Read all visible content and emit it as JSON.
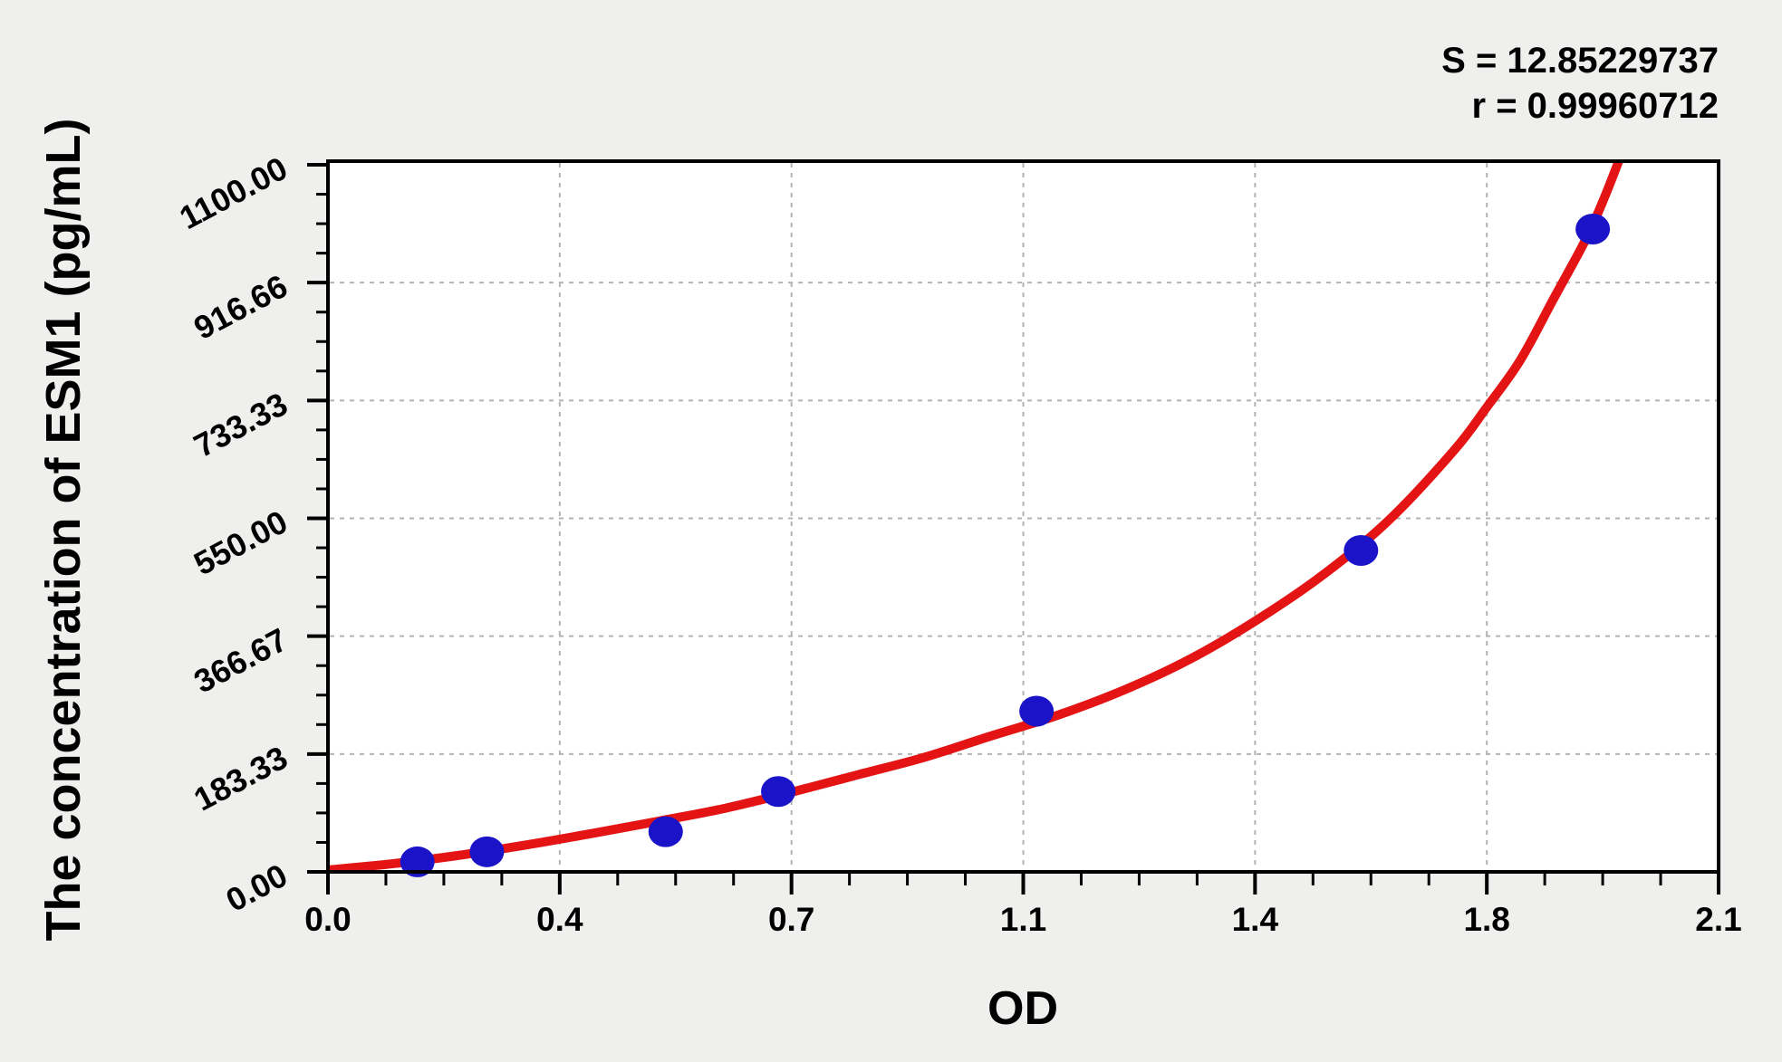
{
  "figure": {
    "background_color": "#efefed",
    "plot_background_color": "#ffffff",
    "frame_color": "#000000",
    "grid_color": "#b3b3b3",
    "curve_color": "#e41414",
    "point_color": "#1b13c8"
  },
  "chart_data": {
    "type": "scatter",
    "title": "",
    "xlabel": "OD",
    "ylabel": "The concentration of ESM1 (pg/mL)",
    "xlim": [
      0,
      2.1
    ],
    "ylim": [
      0,
      1100
    ],
    "grid": "dashed light-gray gridlines at major ticks",
    "legend_position": "none",
    "x_major_ticks": [
      0,
      0.35,
      0.7,
      1.05,
      1.4,
      1.75,
      2.1
    ],
    "x_tick_labels": [
      "0.0",
      "0.4",
      "0.7",
      "1.1",
      "1.4",
      "1.8",
      "2.1"
    ],
    "x_minor_per_major": 3,
    "y_major_ticks": [
      0,
      183.33,
      366.67,
      550,
      733.33,
      916.66,
      1100
    ],
    "y_tick_labels": [
      "0.00",
      "183.33",
      "366.67",
      "550.00",
      "733.33",
      "916.66",
      "1100.00"
    ],
    "y_minor_per_major": 3,
    "series": [
      {
        "name": "standard-points",
        "type": "scatter",
        "points": [
          {
            "od": 0.135,
            "conc": 15.625
          },
          {
            "od": 0.24,
            "conc": 31.25
          },
          {
            "od": 0.51,
            "conc": 62.5
          },
          {
            "od": 0.68,
            "conc": 125
          },
          {
            "od": 1.07,
            "conc": 250
          },
          {
            "od": 1.56,
            "conc": 500
          },
          {
            "od": 1.91,
            "conc": 1000
          }
        ]
      },
      {
        "name": "fitted-curve",
        "type": "line",
        "samples": [
          [
            0.0,
            3
          ],
          [
            0.1,
            13
          ],
          [
            0.2,
            26
          ],
          [
            0.3,
            42
          ],
          [
            0.4,
            60
          ],
          [
            0.5,
            79
          ],
          [
            0.6,
            99
          ],
          [
            0.7,
            124
          ],
          [
            0.8,
            151
          ],
          [
            0.9,
            178
          ],
          [
            1.0,
            211
          ],
          [
            1.1,
            243
          ],
          [
            1.2,
            282
          ],
          [
            1.3,
            330
          ],
          [
            1.4,
            390
          ],
          [
            1.5,
            460
          ],
          [
            1.6,
            545
          ],
          [
            1.7,
            655
          ],
          [
            1.75,
            723
          ],
          [
            1.8,
            795
          ],
          [
            1.85,
            890
          ],
          [
            1.9,
            985
          ],
          [
            1.93,
            1055
          ],
          [
            1.96,
            1135
          ]
        ]
      }
    ],
    "annotations": [
      {
        "text": "S = 12.85229737"
      },
      {
        "text": "r = 0.99960712"
      }
    ],
    "stats": {
      "S": 12.85229737,
      "r": 0.99960712
    }
  }
}
